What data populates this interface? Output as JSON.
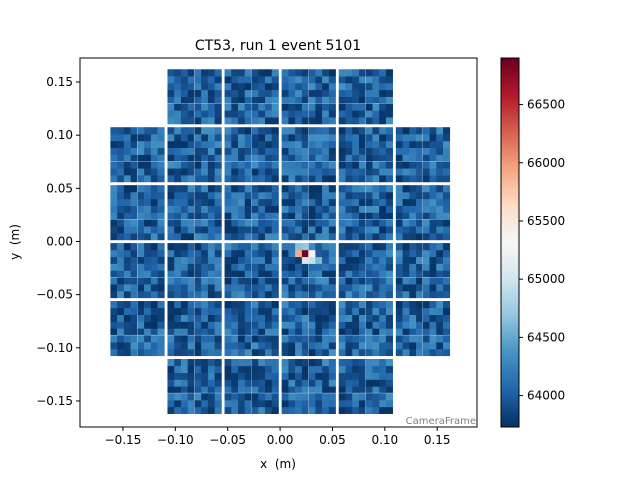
{
  "chart_data": {
    "type": "heatmap",
    "title": "CT53, run 1 event 5101",
    "xlabel": "x  (m)",
    "ylabel": "y  (m)",
    "frame_label": "CameraFrame",
    "xlim": [
      -0.191,
      0.188
    ],
    "ylim": [
      -0.1745,
      0.1726
    ],
    "xticks": [
      -0.15,
      -0.1,
      -0.05,
      0.0,
      0.05,
      0.1,
      0.15
    ],
    "xtick_labels": [
      "−0.15",
      "−0.10",
      "−0.05",
      "0.00",
      "0.05",
      "0.10",
      "0.15"
    ],
    "yticks": [
      0.15,
      0.1,
      0.05,
      0.0,
      -0.05,
      -0.1,
      -0.15
    ],
    "ytick_labels": [
      "0.15",
      "0.10",
      "0.05",
      "0.00",
      "−0.05",
      "−0.10",
      "−0.15"
    ],
    "grid": false,
    "colormap": "RdBu_r",
    "colormap_stops": [
      "#053061",
      "#2166ac",
      "#4393c3",
      "#92c5de",
      "#d1e5f0",
      "#f7f7f7",
      "#fddbc7",
      "#f4a582",
      "#d6604d",
      "#b2182b",
      "#67001f"
    ],
    "color_range": [
      63730,
      66900
    ],
    "colorbar_ticks": [
      64000,
      64500,
      65000,
      65500,
      66000,
      66500
    ],
    "colorbar_tick_labels": [
      "64000",
      "64500",
      "65000",
      "65500",
      "66000",
      "66500"
    ],
    "camera": {
      "module_grid": [
        6,
        6
      ],
      "missing_corner_modules": true,
      "pixels_per_module": [
        8,
        8
      ],
      "background_range": [
        63750,
        64350
      ]
    },
    "hotspot_pixels": [
      {
        "x": 0.0225,
        "y": -0.0118,
        "value": 66850
      },
      {
        "x": 0.016,
        "y": -0.0118,
        "value": 65900
      },
      {
        "x": 0.029,
        "y": -0.0118,
        "value": 65350
      },
      {
        "x": 0.016,
        "y": -0.005,
        "value": 64650
      },
      {
        "x": 0.0225,
        "y": -0.005,
        "value": 64700
      },
      {
        "x": 0.0225,
        "y": -0.0185,
        "value": 65050
      },
      {
        "x": 0.029,
        "y": -0.0185,
        "value": 64950
      },
      {
        "x": 0.0355,
        "y": -0.0185,
        "value": 64600
      }
    ]
  }
}
